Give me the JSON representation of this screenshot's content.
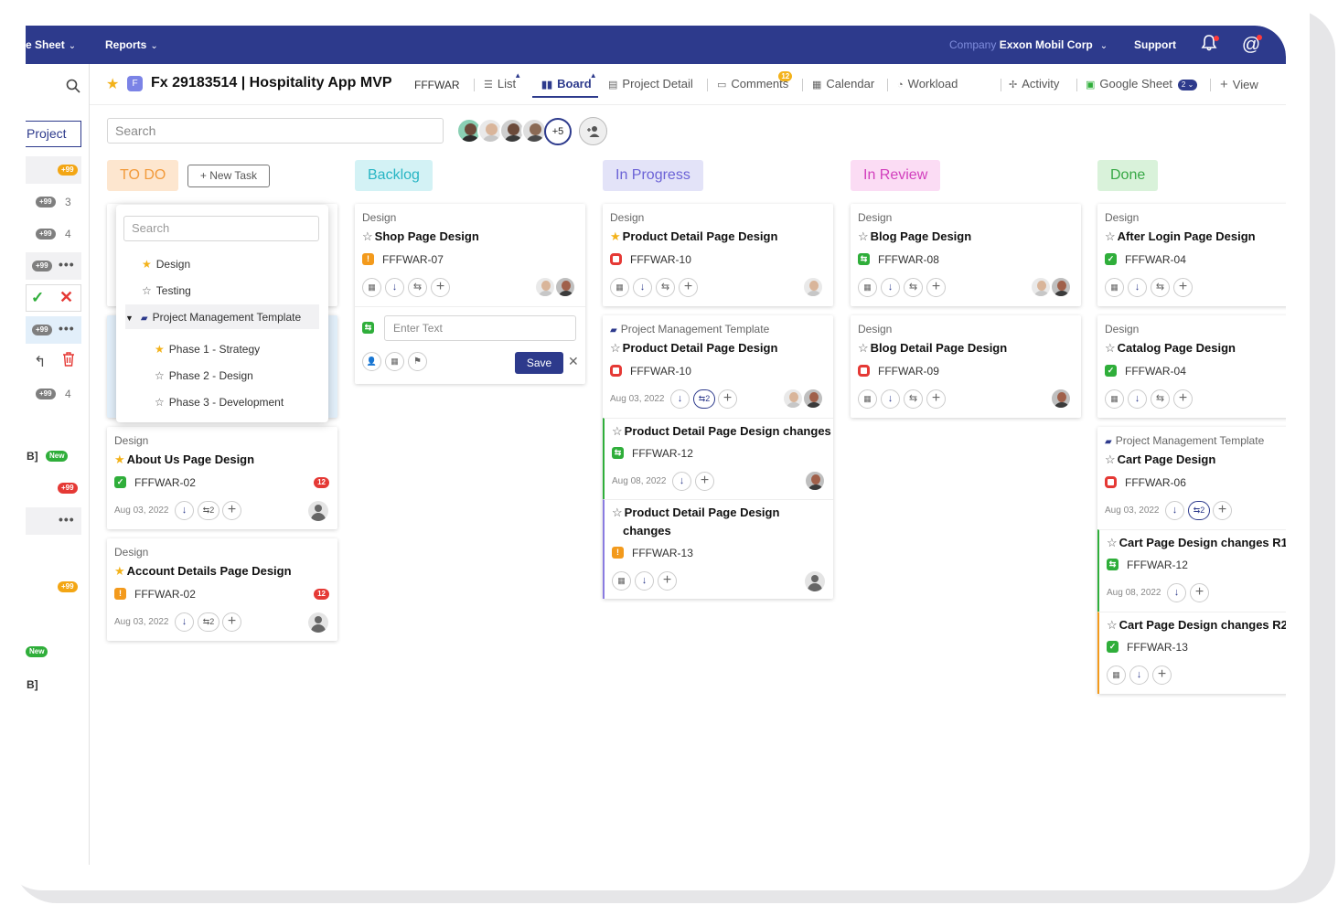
{
  "topbar": {
    "sheet_label": "e Sheet",
    "reports_label": "Reports",
    "company_label": "Company",
    "company_name": "Exxon Mobil Corp",
    "support_label": "Support"
  },
  "sidebar": {
    "project_label": "Project",
    "rows": [
      {
        "badge": "+99",
        "count": ""
      },
      {
        "badge": "+99",
        "count": "3"
      },
      {
        "badge": "+99",
        "count": "4"
      },
      {
        "badge": "+99",
        "count": ""
      },
      {
        "badge": "+99",
        "count": ""
      },
      {
        "badge": "+99",
        "count": "4"
      }
    ],
    "new_label": "New",
    "new_label_2": "New",
    "bracket_text": "B]",
    "bracket_text_2": "B]",
    "red_badge": "+99",
    "orange_badge": "+99"
  },
  "header": {
    "project_initial": "F",
    "project_title": "Fx 29183514 | Hospitality App MVP",
    "project_code": "FFFWAR",
    "tabs": [
      {
        "label": "List"
      },
      {
        "label": "Board"
      },
      {
        "label": "Project Detail"
      },
      {
        "label": "Comments",
        "badge": "12"
      },
      {
        "label": "Calendar"
      },
      {
        "label": "Workload"
      },
      {
        "label": "Activity"
      },
      {
        "label": "Google Sheet",
        "badge": "2"
      },
      {
        "label": "View"
      }
    ]
  },
  "toolbar": {
    "search_placeholder": "Search",
    "more_members": "+5"
  },
  "columns": {
    "todo": {
      "title": "TO DO",
      "new_task": "+ New Task"
    },
    "backlog": {
      "title": "Backlog"
    },
    "inprogress": {
      "title": "In Progress"
    },
    "inreview": {
      "title": "In Review"
    },
    "done": {
      "title": "Done"
    }
  },
  "dropdown": {
    "search_placeholder": "Search",
    "items": [
      "Design",
      "Testing",
      "Project Management Template",
      "Phase 1 - Strategy",
      "Phase 2 - Design",
      "Phase 3 - Development"
    ]
  },
  "cards": {
    "todo": [
      {
        "category": "Design",
        "title": "About Us Page Design",
        "code": "FFFWAR-02",
        "count": "12",
        "date": "Aug 03, 2022",
        "sub": "2"
      },
      {
        "category": "Design",
        "title": "Account Details Page Design",
        "code": "FFFWAR-02",
        "count": "12",
        "date": "Aug 03, 2022",
        "sub": "2"
      }
    ],
    "backlog": [
      {
        "category": "Design",
        "title": "Shop Page Design",
        "code": "FFFWAR-07"
      }
    ],
    "backlog_form": {
      "placeholder": "Enter Text",
      "save": "Save"
    },
    "inprogress": [
      {
        "category": "Design",
        "title": "Product Detail Page Design",
        "code": "FFFWAR-10"
      },
      {
        "category": "Project Management Template",
        "title": "Product Detail Page Design",
        "code": "FFFWAR-10",
        "date": "Aug 03, 2022",
        "sub": "2"
      },
      {
        "title": "Product Detail Page Design changes",
        "code": "FFFWAR-12",
        "date": "Aug 08, 2022"
      },
      {
        "title_line1": "Product Detail Page Design",
        "title_line2": "changes",
        "code": "FFFWAR-13"
      }
    ],
    "inreview": [
      {
        "category": "Design",
        "title": "Blog Page Design",
        "code": "FFFWAR-08"
      },
      {
        "category": "Design",
        "title": "Blog Detail Page Design",
        "code": "FFFWAR-09"
      }
    ],
    "done": [
      {
        "category": "Design",
        "title": "After Login Page Design",
        "code": "FFFWAR-04"
      },
      {
        "category": "Design",
        "title": "Catalog Page Design",
        "code": "FFFWAR-04"
      },
      {
        "category": "Project Management Template",
        "title": "Cart Page Design",
        "code": "FFFWAR-06",
        "date": "Aug 03, 2022",
        "sub": "2"
      },
      {
        "title": "Cart Page Design changes R1",
        "code": "FFFWAR-12",
        "date": "Aug 08, 2022"
      },
      {
        "title": "Cart Page Design changes R2",
        "code": "FFFWAR-13"
      }
    ]
  },
  "colors": {
    "brand": "#2d3a8c",
    "todo_bg": "#fde6cf",
    "todo_fg": "#f29a3a",
    "backlog_bg": "#d3f2f5",
    "backlog_fg": "#28b5c4",
    "inprogress_bg": "#e3e3f8",
    "inprogress_fg": "#6b62d6",
    "inreview_bg": "#fbdcf4",
    "inreview_fg": "#d23fbd",
    "done_bg": "#d9f2da",
    "done_fg": "#37a845"
  }
}
